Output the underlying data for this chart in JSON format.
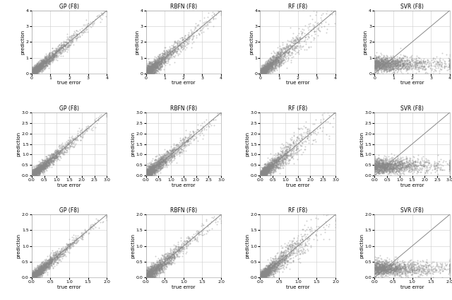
{
  "titles": [
    [
      "GP (F8)",
      "RBFN (F8)",
      "RF (F8)",
      "SVR (F8)"
    ],
    [
      "GP (F8)",
      "RBFN (F8)",
      "RF (F8)",
      "SVR (F8)"
    ],
    [
      "GP (F8)",
      "RBFN (F8)",
      "RF (F8)",
      "SVR (F8)"
    ]
  ],
  "xlabel": "true error",
  "ylabel": "prediction",
  "axis_ranges": [
    [
      0,
      4
    ],
    [
      0,
      3
    ],
    [
      0,
      2
    ]
  ],
  "row_ticks": [
    [
      0,
      1,
      2,
      3,
      4
    ],
    [
      0.0,
      0.5,
      1.0,
      1.5,
      2.0,
      2.5,
      3.0
    ],
    [
      0.0,
      0.5,
      1.0,
      1.5,
      2.0
    ]
  ],
  "scatter_color": "#888888",
  "line_color": "#888888",
  "point_size": 2,
  "alpha": 0.4,
  "n_points": 1500
}
